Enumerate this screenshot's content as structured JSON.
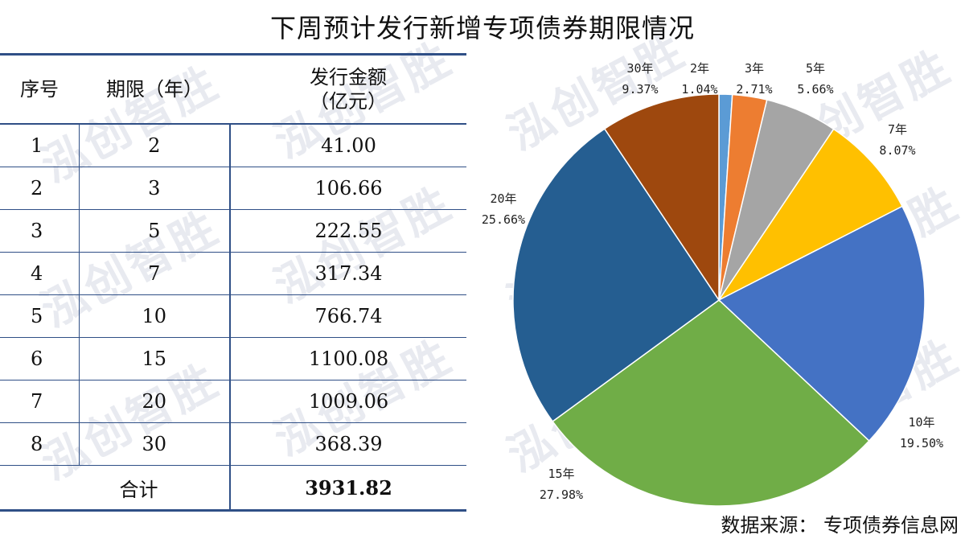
{
  "title": "下周预计发行新增专项债券期限情况",
  "watermark_text": "泓创智胜",
  "table": {
    "headers": [
      "序号",
      "期限（年）",
      "发行金额\n（亿元）"
    ],
    "rows": [
      {
        "no": "1",
        "term": "2",
        "amount": "41.00"
      },
      {
        "no": "2",
        "term": "3",
        "amount": "106.66"
      },
      {
        "no": "3",
        "term": "5",
        "amount": "222.55"
      },
      {
        "no": "4",
        "term": "7",
        "amount": "317.34"
      },
      {
        "no": "5",
        "term": "10",
        "amount": "766.74"
      },
      {
        "no": "6",
        "term": "15",
        "amount": "1100.08"
      },
      {
        "no": "7",
        "term": "20",
        "amount": "1009.06"
      },
      {
        "no": "8",
        "term": "30",
        "amount": "368.39"
      }
    ],
    "total_label": "合计",
    "total_value": "3931.82"
  },
  "chart_data": {
    "type": "pie",
    "slices": [
      {
        "label": "2年",
        "percent": 1.04,
        "display": "1.04%",
        "color": "#5b9bd5"
      },
      {
        "label": "3年",
        "percent": 2.71,
        "display": "2.71%",
        "color": "#ed7d31"
      },
      {
        "label": "5年",
        "percent": 5.66,
        "display": "5.66%",
        "color": "#a5a5a5"
      },
      {
        "label": "7年",
        "percent": 8.07,
        "display": "8.07%",
        "color": "#ffc000"
      },
      {
        "label": "10年",
        "percent": 19.5,
        "display": "19.50%",
        "color": "#4472c4"
      },
      {
        "label": "15年",
        "percent": 27.98,
        "display": "27.98%",
        "color": "#70ad47"
      },
      {
        "label": "20年",
        "percent": 25.66,
        "display": "25.66%",
        "color": "#255e91"
      },
      {
        "label": "30年",
        "percent": 9.37,
        "display": "9.37%",
        "color": "#9e480e"
      }
    ]
  },
  "source": "数据来源： 专项债券信息网"
}
